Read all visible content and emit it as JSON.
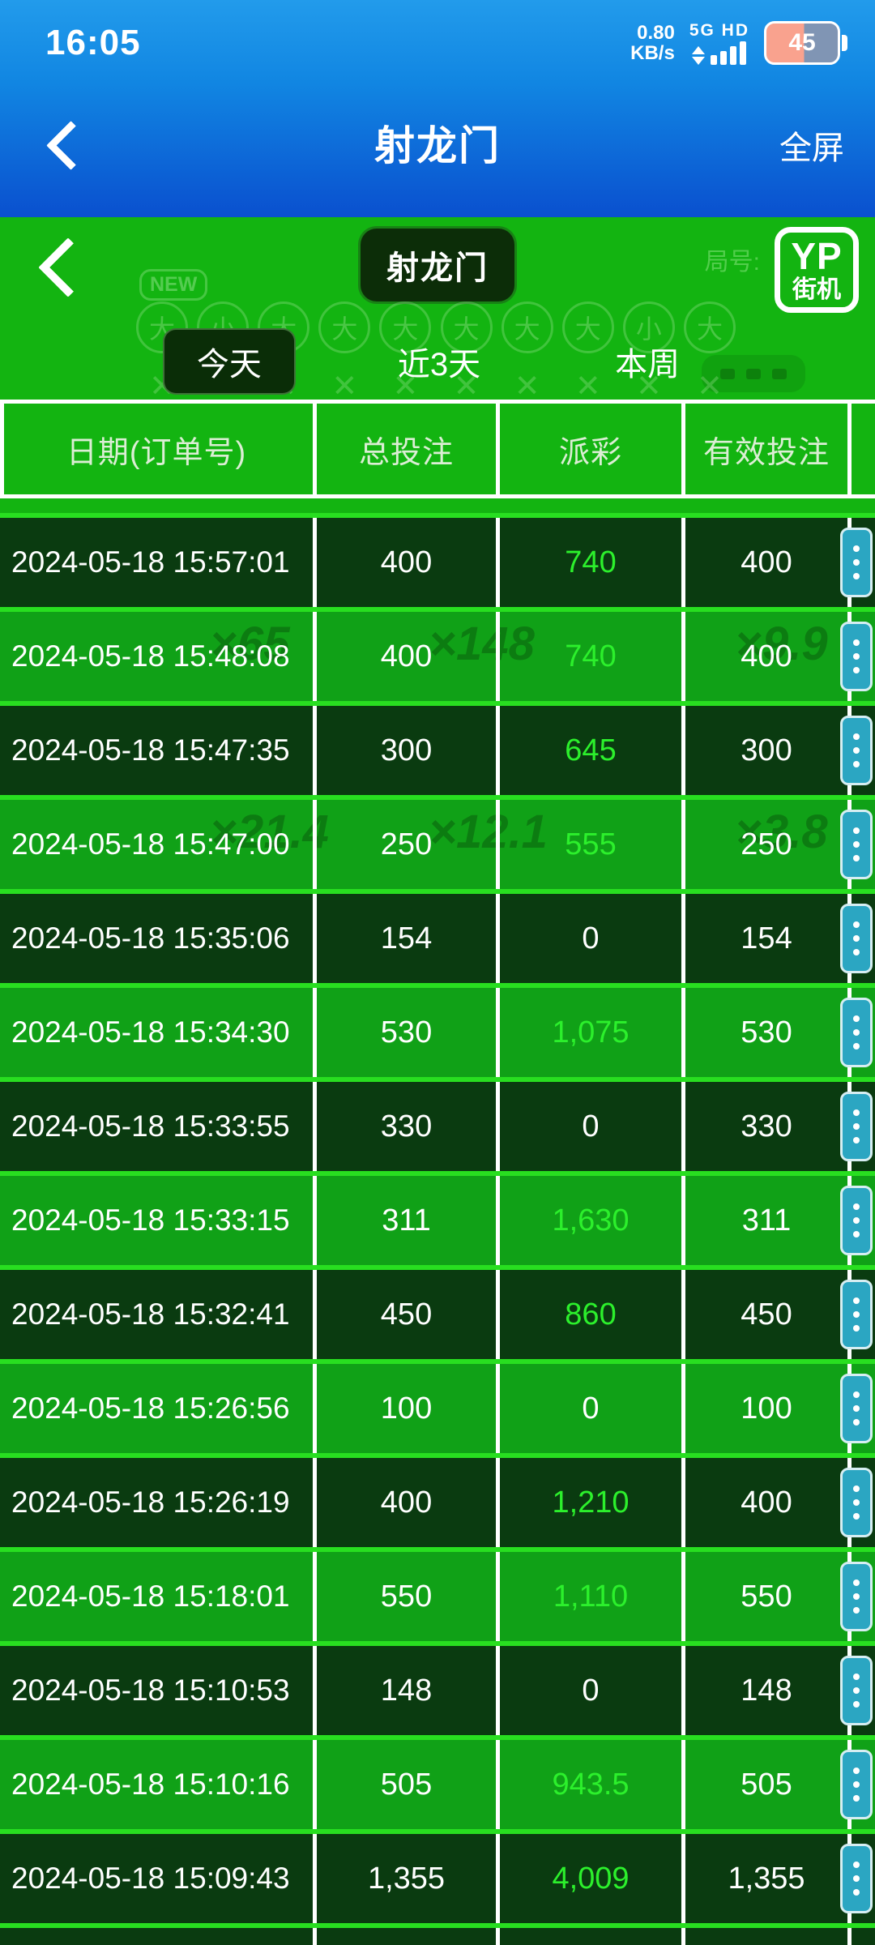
{
  "status_bar": {
    "time": "16:05",
    "net_speed": "0.80",
    "net_unit": "KB/s",
    "net_badges": "5G HD",
    "battery_level": "45"
  },
  "nav_bar": {
    "title": "射龙门",
    "fullscreen": "全屏"
  },
  "game_area": {
    "badge": "射龙门",
    "logo_top": "YP",
    "logo_bottom": "街机",
    "round_label": "局号:",
    "new_label": "NEW"
  },
  "tabs": [
    {
      "label": "今天",
      "selected": true
    },
    {
      "label": "近3天",
      "selected": false
    },
    {
      "label": "本周",
      "selected": false
    }
  ],
  "table": {
    "columns": [
      "日期(订单号)",
      "总投注",
      "派彩",
      "有效投注"
    ],
    "rows": [
      {
        "date": "2024-05-18 15:57:01",
        "total": "400",
        "payout": "740",
        "valid": "400",
        "win": true
      },
      {
        "date": "2024-05-18 15:48:08",
        "total": "400",
        "payout": "740",
        "valid": "400",
        "win": true,
        "ghosts": [
          "×65",
          "×148",
          "×9.9"
        ]
      },
      {
        "date": "2024-05-18 15:47:35",
        "total": "300",
        "payout": "645",
        "valid": "300",
        "win": true
      },
      {
        "date": "2024-05-18 15:47:00",
        "total": "250",
        "payout": "555",
        "valid": "250",
        "win": true,
        "ghosts": [
          "×21.4",
          "×12.1",
          "×3.8"
        ]
      },
      {
        "date": "2024-05-18 15:35:06",
        "total": "154",
        "payout": "0",
        "valid": "154",
        "win": false
      },
      {
        "date": "2024-05-18 15:34:30",
        "total": "530",
        "payout": "1,075",
        "valid": "530",
        "win": true
      },
      {
        "date": "2024-05-18 15:33:55",
        "total": "330",
        "payout": "0",
        "valid": "330",
        "win": false
      },
      {
        "date": "2024-05-18 15:33:15",
        "total": "311",
        "payout": "1,630",
        "valid": "311",
        "win": true
      },
      {
        "date": "2024-05-18 15:32:41",
        "total": "450",
        "payout": "860",
        "valid": "450",
        "win": true
      },
      {
        "date": "2024-05-18 15:26:56",
        "total": "100",
        "payout": "0",
        "valid": "100",
        "win": false
      },
      {
        "date": "2024-05-18 15:26:19",
        "total": "400",
        "payout": "1,210",
        "valid": "400",
        "win": true
      },
      {
        "date": "2024-05-18 15:18:01",
        "total": "550",
        "payout": "1,110",
        "valid": "550",
        "win": true
      },
      {
        "date": "2024-05-18 15:10:53",
        "total": "148",
        "payout": "0",
        "valid": "148",
        "win": false
      },
      {
        "date": "2024-05-18 15:10:16",
        "total": "505",
        "payout": "943.5",
        "valid": "505",
        "win": true
      },
      {
        "date": "2024-05-18 15:09:43",
        "total": "1,355",
        "payout": "4,009",
        "valid": "1,355",
        "win": true
      }
    ]
  },
  "background_hints": {
    "circles": [
      "大",
      "小",
      "大",
      "大",
      "大",
      "大",
      "大",
      "大",
      "小",
      "大"
    ],
    "x_mark": "✕"
  },
  "colors": {
    "header_blue_top": "#229beb",
    "header_blue_bottom": "#0a50cf",
    "page_green": "#13b411",
    "row_dark": "#0a3b10",
    "row_light": "#10a117",
    "separator_green": "#28df20",
    "win_green": "#2cf02c",
    "action_teal": "#2ba6c2",
    "battery_fill": "#f9a28e",
    "tab_selected_bg": "#0a2d07"
  }
}
